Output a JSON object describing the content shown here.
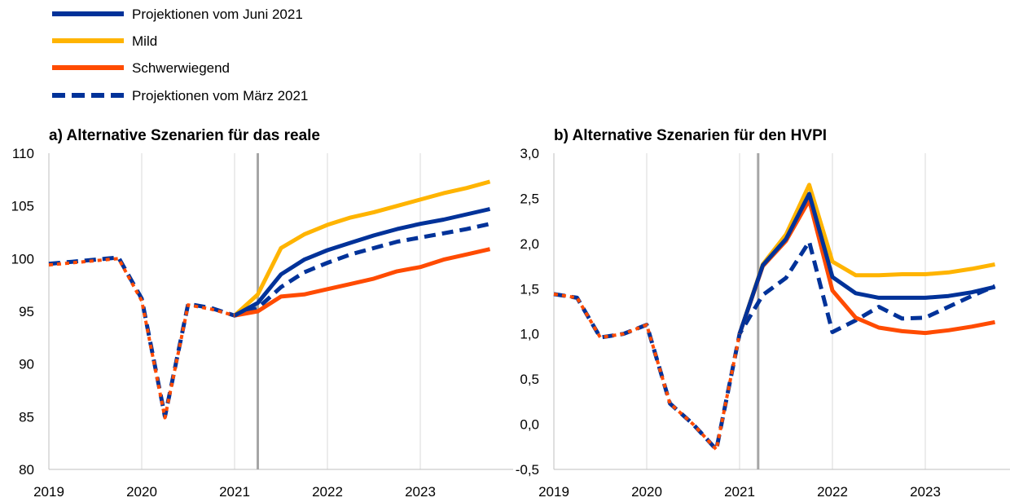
{
  "legend": [
    {
      "label": "Projektionen vom Juni 2021",
      "color": "#003299",
      "dashed": false
    },
    {
      "label": "Mild",
      "color": "#FFB400",
      "dashed": false
    },
    {
      "label": "Schwerwiegend",
      "color": "#FF4B00",
      "dashed": false
    },
    {
      "label": "Projektionen vom März 2021",
      "color": "#003299",
      "dashed": true
    }
  ],
  "chart_data": [
    {
      "type": "line",
      "title": "a) Alternative Szenarien für das reale",
      "xlabel": "",
      "ylabel": "",
      "xlim": [
        2019,
        2024
      ],
      "ylim": [
        80,
        110
      ],
      "yticks": [
        "80",
        "85",
        "90",
        "95",
        "100",
        "105",
        "110"
      ],
      "xticks": [
        "2019",
        "2020",
        "2021",
        "2022",
        "2023"
      ],
      "vline_x": 2021.25,
      "grid": "vertical",
      "series": [
        {
          "name": "Projektionen vom März 2021",
          "color": "#003299",
          "dashed": true,
          "x": [
            2019.0,
            2019.25,
            2019.5,
            2019.75,
            2020.0,
            2020.25,
            2020.5,
            2020.75,
            2021.0,
            2021.25,
            2021.5,
            2021.75,
            2022.0,
            2022.25,
            2022.5,
            2022.75,
            2023.0,
            2023.25,
            2023.5,
            2023.75
          ],
          "y": [
            99.5,
            99.7,
            99.9,
            100.1,
            96.2,
            85.0,
            95.7,
            95.3,
            94.6,
            95.3,
            97.3,
            98.7,
            99.6,
            100.4,
            101.0,
            101.6,
            102.0,
            102.4,
            102.8,
            103.3
          ]
        },
        {
          "name": "Schwerwiegend",
          "color": "#FF4B00",
          "dashed": false,
          "x": [
            2021.0,
            2021.25,
            2021.5,
            2021.75,
            2022.0,
            2022.25,
            2022.5,
            2022.75,
            2023.0,
            2023.25,
            2023.5,
            2023.75
          ],
          "y": [
            94.6,
            95.0,
            96.4,
            96.6,
            97.1,
            97.6,
            98.1,
            98.8,
            99.2,
            99.9,
            100.4,
            100.9
          ]
        },
        {
          "name": "Mild",
          "color": "#FFB400",
          "dashed": false,
          "x": [
            2021.0,
            2021.25,
            2021.5,
            2021.75,
            2022.0,
            2022.25,
            2022.5,
            2022.75,
            2023.0,
            2023.25,
            2023.5,
            2023.75
          ],
          "y": [
            94.6,
            96.6,
            101.0,
            102.3,
            103.2,
            103.9,
            104.4,
            105.0,
            105.6,
            106.2,
            106.7,
            107.3
          ]
        },
        {
          "name": "Projektionen vom Juni 2021",
          "color": "#003299",
          "dashed": false,
          "x": [
            2021.0,
            2021.25,
            2021.5,
            2021.75,
            2022.0,
            2022.25,
            2022.5,
            2022.75,
            2023.0,
            2023.25,
            2023.5,
            2023.75
          ],
          "y": [
            94.6,
            95.8,
            98.5,
            99.9,
            100.8,
            101.5,
            102.2,
            102.8,
            103.3,
            103.7,
            104.2,
            104.7
          ]
        },
        {
          "name": "",
          "color": "#FF4B00",
          "dashed": false,
          "overlay": true,
          "x": [
            2019.0,
            2019.25,
            2019.5,
            2019.75,
            2020.0,
            2020.25,
            2020.5,
            2020.75,
            2021.0
          ],
          "y": [
            99.4,
            99.6,
            99.8,
            100.0,
            96.0,
            84.9,
            95.6,
            95.2,
            94.6
          ]
        }
      ]
    },
    {
      "type": "line",
      "title": "b) Alternative Szenarien für den HVPI",
      "xlabel": "",
      "ylabel": "",
      "xlim": [
        2019,
        2024
      ],
      "ylim": [
        -0.5,
        3.0
      ],
      "yticks": [
        "-0,5",
        "0,0",
        "0,5",
        "1,0",
        "1,5",
        "2,0",
        "2,5",
        "3,0"
      ],
      "xticks": [
        "2019",
        "2020",
        "2021",
        "2022",
        "2023"
      ],
      "vline_x": 2021.2,
      "grid": "vertical",
      "series": [
        {
          "name": "Projektionen vom März 2021",
          "color": "#003299",
          "dashed": true,
          "x": [
            2019.0,
            2019.25,
            2019.5,
            2019.75,
            2020.0,
            2020.25,
            2020.5,
            2020.75,
            2021.0,
            2021.25,
            2021.5,
            2021.75,
            2022.0,
            2022.25,
            2022.5,
            2022.75,
            2023.0,
            2023.25,
            2023.5,
            2023.75
          ],
          "y": [
            1.44,
            1.4,
            0.96,
            1.0,
            1.1,
            0.23,
            0.0,
            -0.28,
            1.0,
            1.43,
            1.62,
            2.02,
            1.02,
            1.15,
            1.3,
            1.17,
            1.18,
            1.3,
            1.42,
            1.53
          ]
        },
        {
          "name": "Mild",
          "color": "#FFB400",
          "dashed": false,
          "x": [
            2021.0,
            2021.25,
            2021.5,
            2021.75,
            2022.0,
            2022.25,
            2022.5,
            2022.75,
            2023.0,
            2023.25,
            2023.5,
            2023.75
          ],
          "y": [
            1.0,
            1.77,
            2.1,
            2.65,
            1.8,
            1.65,
            1.65,
            1.66,
            1.66,
            1.68,
            1.72,
            1.77
          ]
        },
        {
          "name": "Schwerwiegend",
          "color": "#FF4B00",
          "dashed": false,
          "x": [
            2021.0,
            2021.25,
            2021.5,
            2021.75,
            2022.0,
            2022.25,
            2022.5,
            2022.75,
            2023.0,
            2023.25,
            2023.5,
            2023.75
          ],
          "y": [
            1.0,
            1.75,
            2.03,
            2.48,
            1.48,
            1.18,
            1.07,
            1.03,
            1.01,
            1.04,
            1.08,
            1.13
          ]
        },
        {
          "name": "Projektionen vom Juni 2021",
          "color": "#003299",
          "dashed": false,
          "x": [
            2021.0,
            2021.25,
            2021.5,
            2021.75,
            2022.0,
            2022.25,
            2022.5,
            2022.75,
            2023.0,
            2023.25,
            2023.5,
            2023.75
          ],
          "y": [
            1.0,
            1.76,
            2.05,
            2.55,
            1.63,
            1.45,
            1.4,
            1.4,
            1.4,
            1.42,
            1.46,
            1.52
          ]
        },
        {
          "name": "",
          "color": "#FF4B00",
          "dashed": false,
          "overlay": true,
          "x": [
            2019.0,
            2019.25,
            2019.5,
            2019.75,
            2020.0,
            2020.25,
            2020.5,
            2020.75,
            2021.0
          ],
          "y": [
            1.44,
            1.4,
            0.96,
            1.0,
            1.1,
            0.23,
            0.0,
            -0.28,
            1.0
          ]
        }
      ]
    }
  ]
}
